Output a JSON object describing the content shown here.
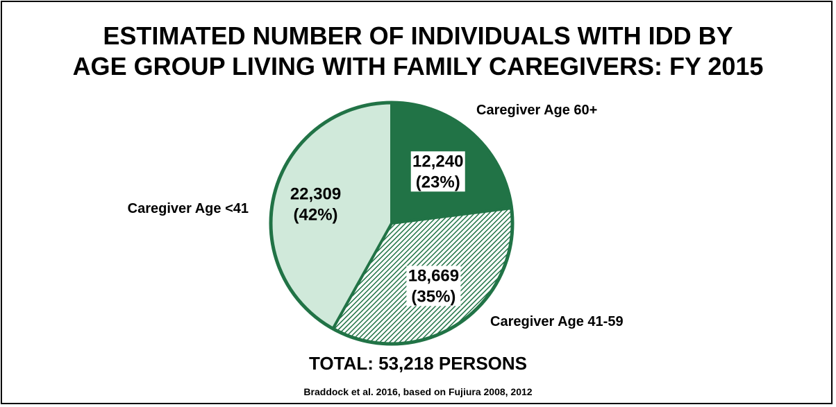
{
  "title_lines": [
    "ESTIMATED NUMBER OF INDIVIDUALS WITH IDD BY",
    "AGE GROUP LIVING WITH FAMILY CAREGIVERS: FY 2015"
  ],
  "total_label": "TOTAL: 53,218 PERSONS",
  "source": "Braddock et al. 2016, based on Fujiura 2008, 2012",
  "colors": {
    "outline": "#217346",
    "dark": "#217346",
    "light": "#d0e9da",
    "hatch": "#217346"
  },
  "chart_data": {
    "type": "pie",
    "title": "ESTIMATED NUMBER OF INDIVIDUALS WITH IDD BY AGE GROUP LIVING WITH FAMILY CAREGIVERS: FY 2015",
    "slices": [
      {
        "name": "Caregiver Age 60+",
        "value": 12240,
        "value_label": "12,240",
        "percent_label": "(23%)",
        "fill": "dark"
      },
      {
        "name": "Caregiver Age 41-59",
        "value": 18669,
        "value_label": "18,669",
        "percent_label": "(35%)",
        "fill": "hatch"
      },
      {
        "name": "Caregiver Age <41",
        "value": 22309,
        "value_label": "22,309",
        "percent_label": "(42%)",
        "fill": "light"
      }
    ],
    "total": 53218
  }
}
